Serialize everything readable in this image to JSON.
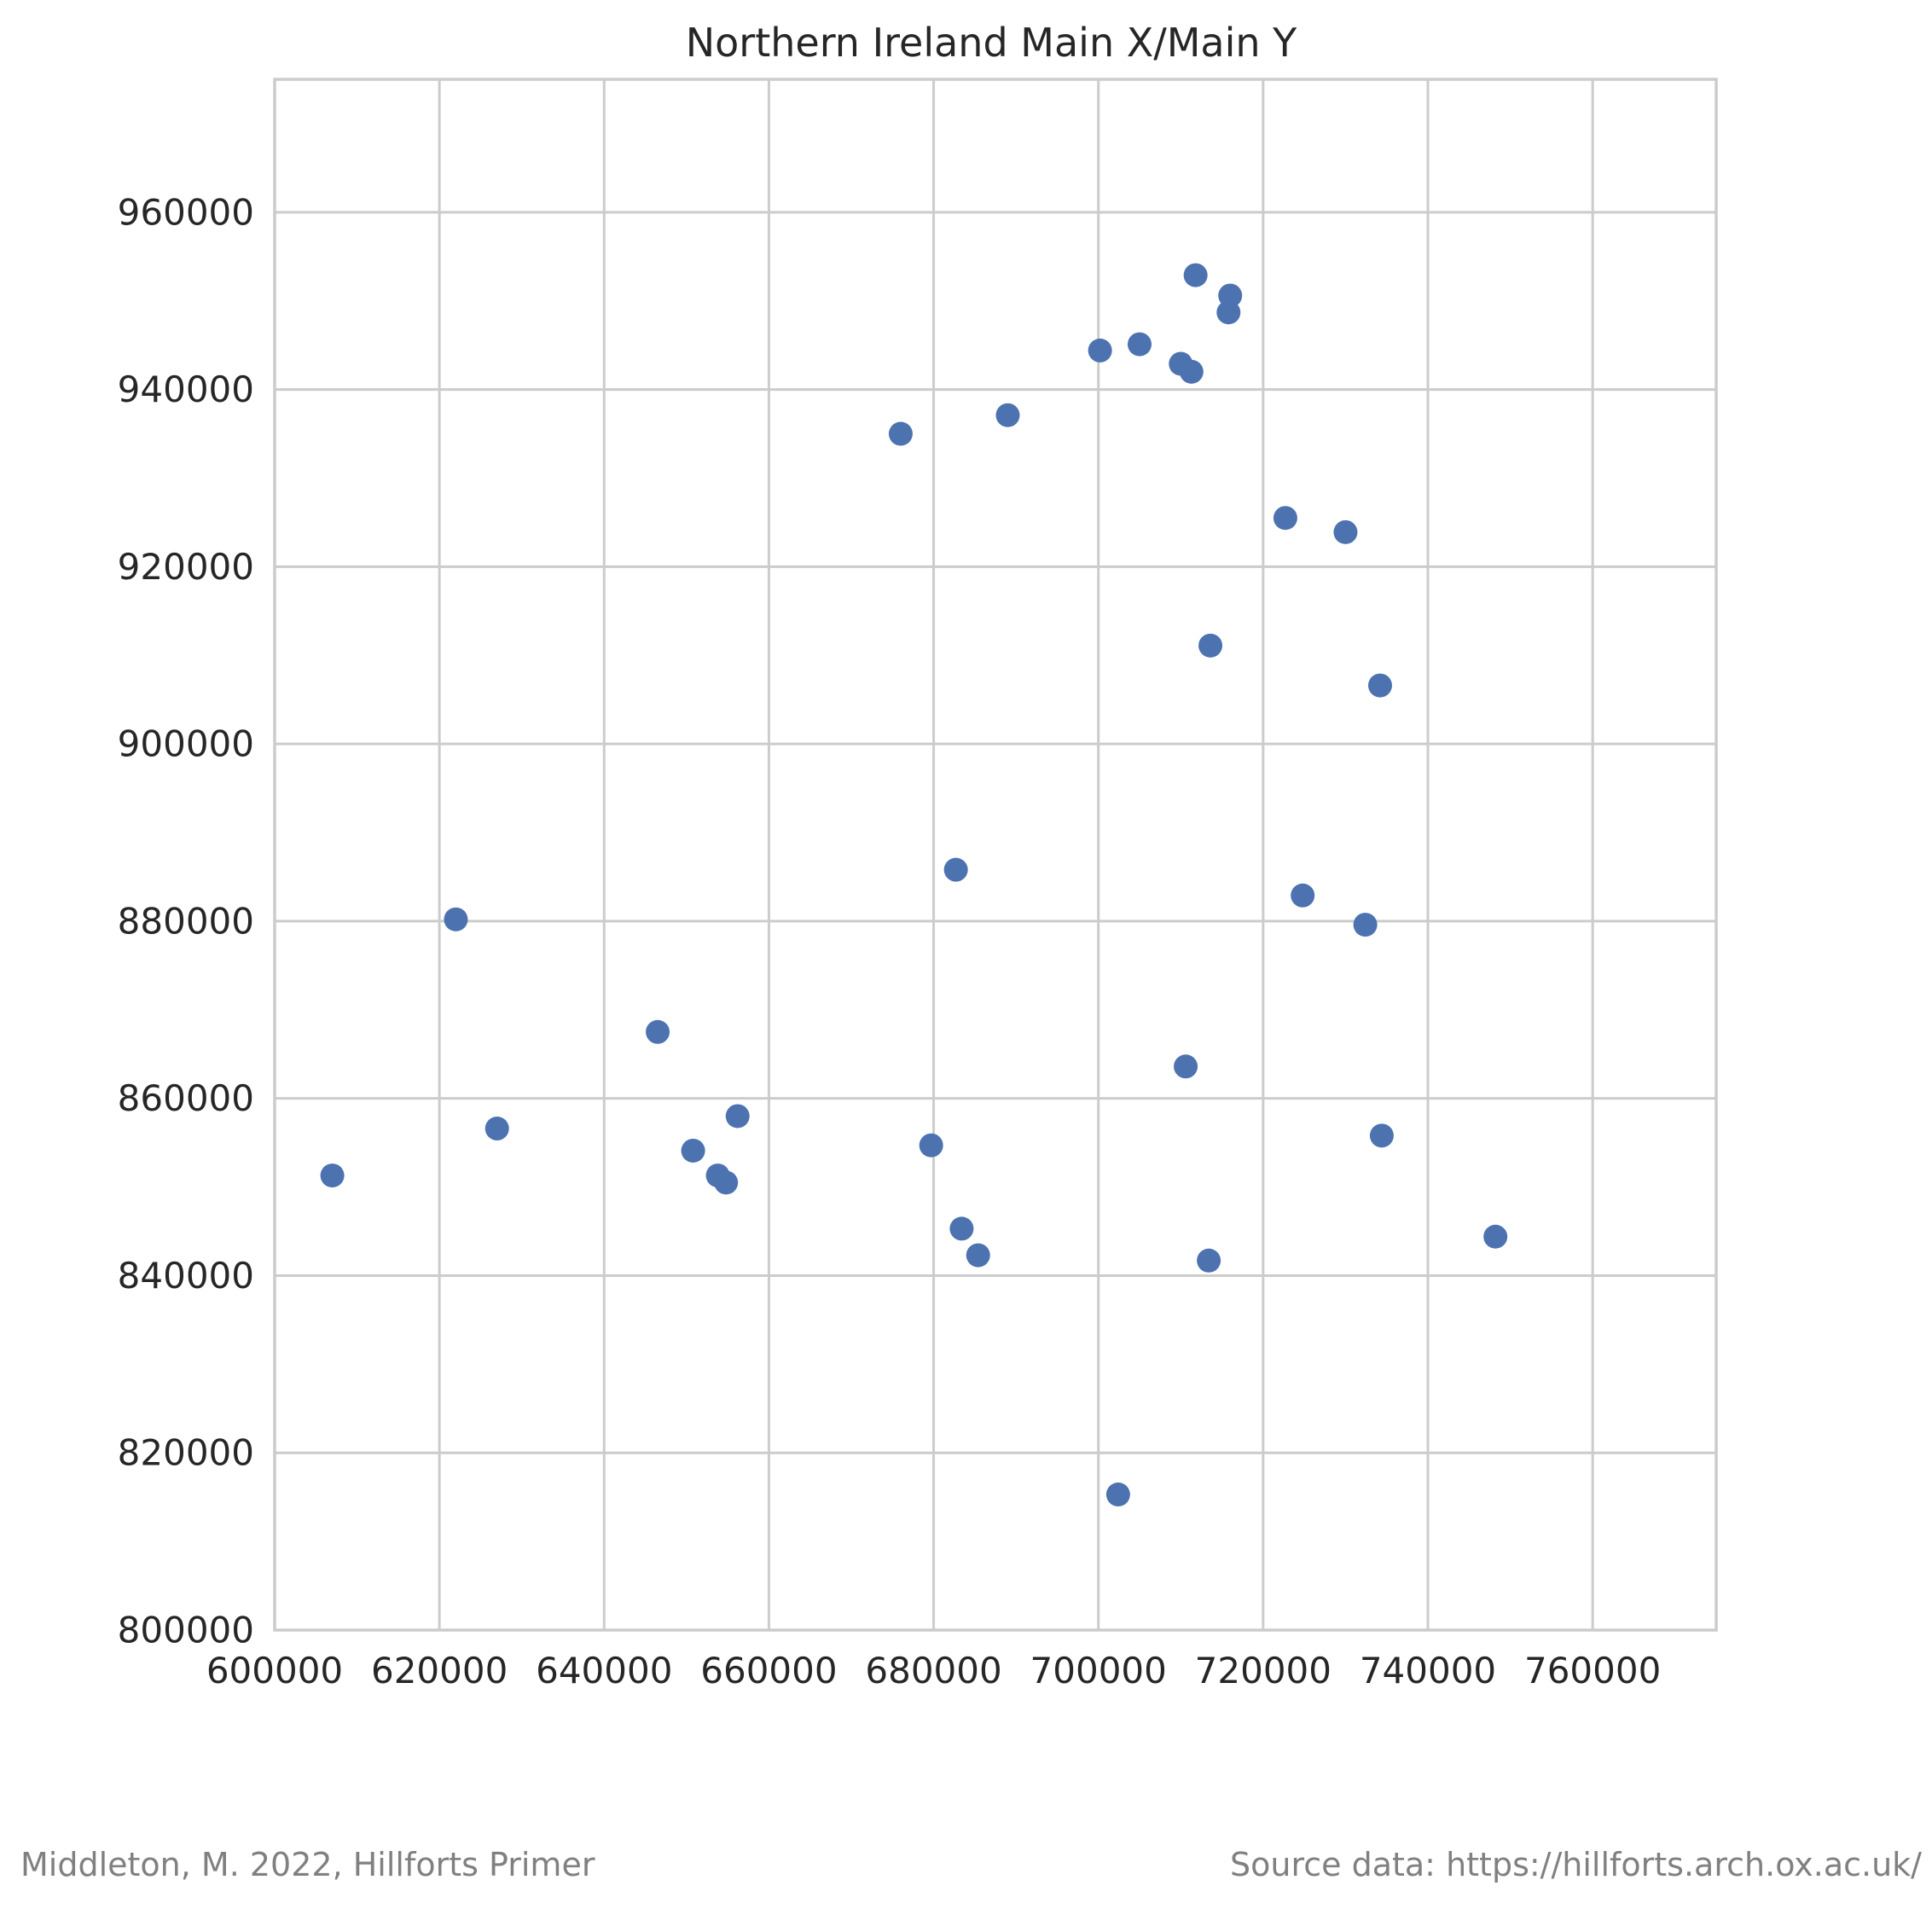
{
  "chart_data": {
    "type": "scatter",
    "title": "Northern Ireland Main X/Main Y",
    "xlabel": "",
    "ylabel": "",
    "xlim": [
      600000,
      775000
    ],
    "ylim": [
      800000,
      975000
    ],
    "xticks": [
      600000,
      620000,
      640000,
      660000,
      680000,
      700000,
      720000,
      740000,
      760000
    ],
    "yticks": [
      800000,
      820000,
      840000,
      860000,
      880000,
      900000,
      920000,
      940000,
      960000
    ],
    "grid": true,
    "marker_color": "#4c72b0",
    "points": [
      {
        "x": 607000,
        "y": 851300
      },
      {
        "x": 622000,
        "y": 880200
      },
      {
        "x": 627000,
        "y": 856600
      },
      {
        "x": 646500,
        "y": 867500
      },
      {
        "x": 650800,
        "y": 854100
      },
      {
        "x": 653800,
        "y": 851300
      },
      {
        "x": 654800,
        "y": 850500
      },
      {
        "x": 656200,
        "y": 858000
      },
      {
        "x": 676000,
        "y": 935000
      },
      {
        "x": 679700,
        "y": 854700
      },
      {
        "x": 682700,
        "y": 885800
      },
      {
        "x": 683400,
        "y": 845300
      },
      {
        "x": 685400,
        "y": 842300
      },
      {
        "x": 689000,
        "y": 937100
      },
      {
        "x": 700200,
        "y": 944400
      },
      {
        "x": 702400,
        "y": 815300
      },
      {
        "x": 705000,
        "y": 945100
      },
      {
        "x": 710000,
        "y": 942900
      },
      {
        "x": 710600,
        "y": 863600
      },
      {
        "x": 711300,
        "y": 942000
      },
      {
        "x": 711800,
        "y": 952900
      },
      {
        "x": 713400,
        "y": 841700
      },
      {
        "x": 713600,
        "y": 911100
      },
      {
        "x": 715800,
        "y": 948700
      },
      {
        "x": 716000,
        "y": 950600
      },
      {
        "x": 722700,
        "y": 925500
      },
      {
        "x": 724800,
        "y": 882900
      },
      {
        "x": 730000,
        "y": 923900
      },
      {
        "x": 732400,
        "y": 879600
      },
      {
        "x": 734200,
        "y": 906600
      },
      {
        "x": 734400,
        "y": 855800
      },
      {
        "x": 748200,
        "y": 844400
      }
    ]
  },
  "footer": {
    "left": "Middleton, M. 2022, Hillforts Primer",
    "right": "Source data: https://hillforts.arch.ox.ac.uk/"
  }
}
